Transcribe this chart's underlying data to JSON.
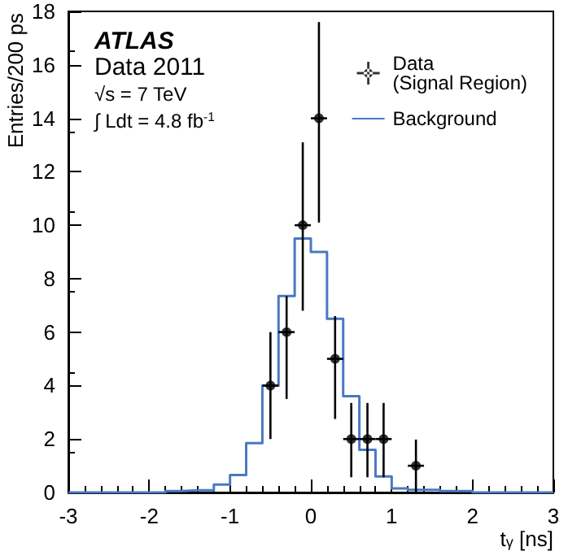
{
  "chart_data": {
    "type": "histogram",
    "xlabel": "t$_{γ}$ [ns]",
    "ylabel": "Entries/200 ps",
    "annotations": [
      "ATLAS",
      "Data 2011",
      "√s = 7 TeV",
      "∫ Ldt = 4.8 fb$^{-1}$"
    ],
    "bins": [
      -3,
      -2.8,
      -2.6,
      -2.4,
      -2.2,
      -2,
      -1.8,
      -1.6,
      -1.4,
      -1.2,
      -1,
      -0.8,
      -0.6,
      -0.4,
      -0.2,
      0,
      0.2,
      0.4,
      0.6,
      0.8,
      1,
      1.2,
      1.4,
      1.6,
      1.8,
      2,
      2.2,
      2.4,
      2.6,
      2.8,
      3
    ],
    "series": [
      {
        "name": "Background",
        "color": "#4a78c2",
        "values": [
          0,
          0,
          0,
          0,
          0,
          0,
          0.05,
          0.08,
          0.08,
          0.3,
          0.65,
          1.85,
          4.0,
          7.35,
          9.5,
          9.0,
          6.5,
          3.6,
          1.6,
          0.6,
          0.15,
          0.1,
          0.1,
          0.05,
          0.05,
          0,
          0,
          0,
          0,
          0
        ]
      },
      {
        "name": "Data\n(Signal Region)",
        "type": "scatter",
        "color": "#000000",
        "x": [
          -0.5,
          -0.3,
          -0.1,
          0.1,
          0.3,
          0.5,
          0.7,
          0.9,
          1.3
        ],
        "values": [
          4,
          6,
          10,
          14,
          5,
          2,
          2,
          2,
          1
        ],
        "errors": [
          [
            2,
            6
          ],
          [
            3.5,
            7.35
          ],
          [
            6.8,
            13.1
          ],
          [
            10.1,
            17.6
          ],
          [
            2.75,
            6.6
          ],
          [
            0.57,
            3.35
          ],
          [
            0.57,
            3.35
          ],
          [
            0.57,
            3.35
          ],
          [
            0,
            1.98
          ]
        ],
        "xerrors": [
          0.1,
          0.1,
          0.1,
          0.1,
          0.1,
          0.1,
          0.1,
          0.1,
          0.1
        ]
      }
    ],
    "xlim": [
      -3,
      3
    ],
    "xticks": [
      -3,
      -2,
      -1,
      0,
      1,
      2,
      3
    ],
    "ylim": [
      0,
      18
    ],
    "yticks": [
      0,
      2,
      4,
      6,
      8,
      10,
      12,
      14,
      16,
      18
    ],
    "grid": false,
    "legend": "top right",
    "marker": "circle"
  }
}
